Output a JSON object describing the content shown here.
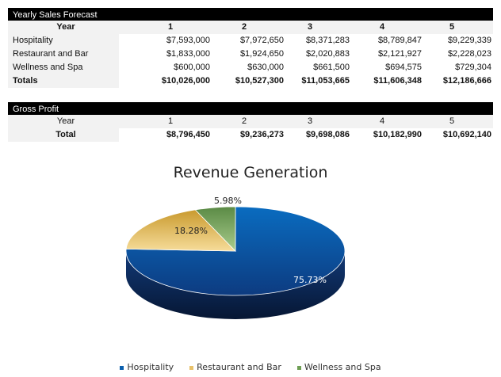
{
  "sales": {
    "title": "Yearly Sales Forecast",
    "header_label": "Year",
    "years": [
      "1",
      "2",
      "3",
      "4",
      "5"
    ],
    "rows": [
      {
        "label": "Hospitality",
        "values": [
          "$7,593,000",
          "$7,972,650",
          "$8,371,283",
          "$8,789,847",
          "$9,229,339"
        ]
      },
      {
        "label": "Restaurant and Bar",
        "values": [
          "$1,833,000",
          "$1,924,650",
          "$2,020,883",
          "$2,121,927",
          "$2,228,023"
        ]
      },
      {
        "label": "Wellness and Spa",
        "values": [
          "$600,000",
          "$630,000",
          "$661,500",
          "$694,575",
          "$729,304"
        ]
      }
    ],
    "totals": {
      "label": "Totals",
      "values": [
        "$10,026,000",
        "$10,527,300",
        "$11,053,665",
        "$11,606,348",
        "$12,186,666"
      ]
    }
  },
  "profit": {
    "title": "Gross Profit",
    "header_label": "Year",
    "years": [
      "1",
      "2",
      "3",
      "4",
      "5"
    ],
    "total": {
      "label": "Total",
      "values": [
        "$8,796,450",
        "$9,236,273",
        "$9,698,086",
        "$10,182,990",
        "$10,692,140"
      ]
    }
  },
  "chart_data": {
    "type": "pie",
    "title": "Revenue Generation",
    "legend_position": "bottom",
    "three_d": true,
    "categories": [
      "Hospitality",
      "Restaurant and Bar",
      "Wellness and Spa"
    ],
    "values": [
      75.73,
      18.28,
      5.98
    ],
    "labels": [
      "75.73%",
      "18.28%",
      "5.98%"
    ],
    "colors": [
      "#0b5fad",
      "#e8c16a",
      "#6f9f55"
    ]
  }
}
